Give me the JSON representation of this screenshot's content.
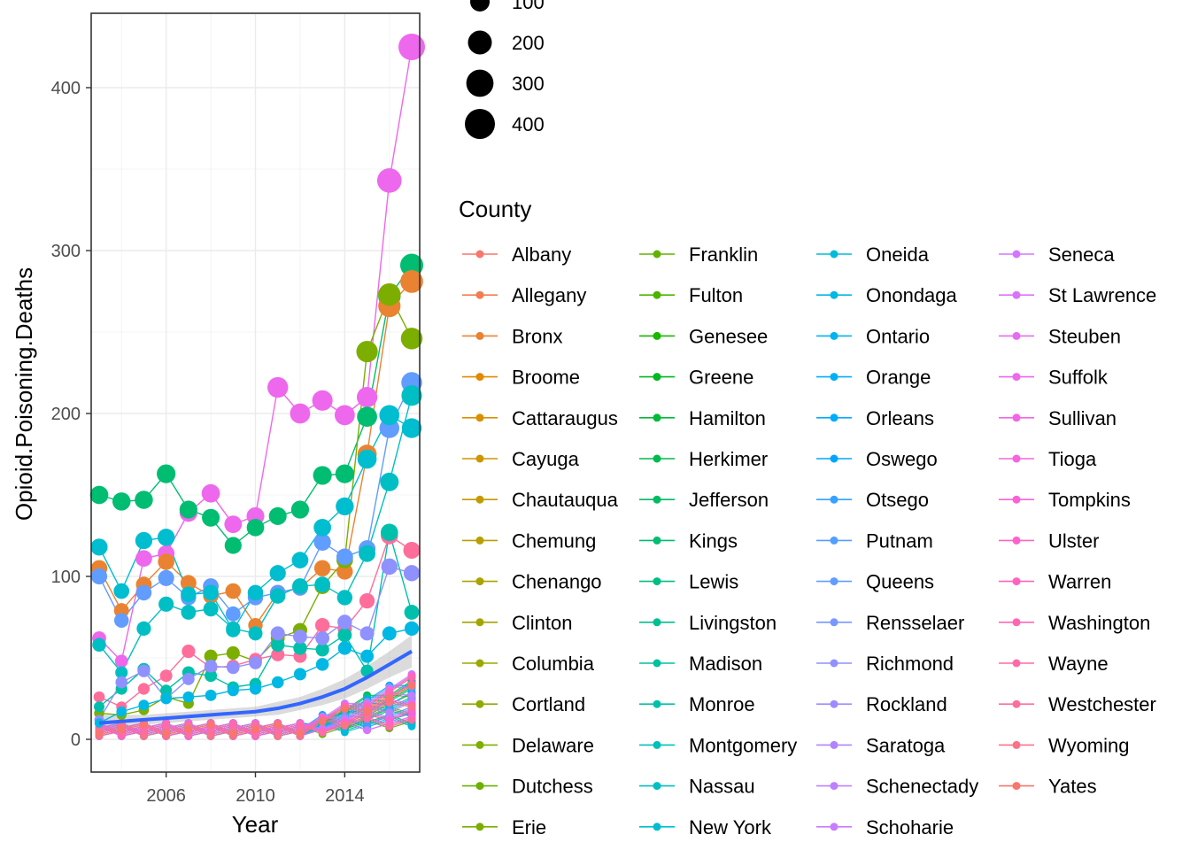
{
  "chart_data": {
    "type": "scatter",
    "xlabel": "Year",
    "ylabel": "Opioid.Poisoning.Deaths",
    "xlim": [
      2003,
      2017
    ],
    "ylim": [
      0,
      430
    ],
    "x_ticks": [
      2006,
      2010,
      2014
    ],
    "x_tick_labels": [
      "2006",
      "2010",
      "2014"
    ],
    "y_ticks": [
      0,
      100,
      200,
      300,
      400
    ],
    "y_tick_labels": [
      "0",
      "100",
      "200",
      "300",
      "400"
    ],
    "grid": true,
    "legend_placement": "right",
    "size_legend": {
      "values": [
        100,
        200,
        300,
        400
      ],
      "labels": [
        "100",
        "200",
        "300",
        "400"
      ]
    },
    "color_legend": {
      "title": "County",
      "entries": [
        {
          "name": "Albany",
          "color": "#F8766D"
        },
        {
          "name": "Allegany",
          "color": "#F27D52"
        },
        {
          "name": "Bronx",
          "color": "#EA8331"
        },
        {
          "name": "Broome",
          "color": "#E18A00"
        },
        {
          "name": "Cattaraugus",
          "color": "#D89000"
        },
        {
          "name": "Cayuga",
          "color": "#CD9600"
        },
        {
          "name": "Chautauqua",
          "color": "#C49A00"
        },
        {
          "name": "Chemung",
          "color": "#B79F00"
        },
        {
          "name": "Chenango",
          "color": "#ABA300"
        },
        {
          "name": "Clinton",
          "color": "#A3A500"
        },
        {
          "name": "Columbia",
          "color": "#9AA800"
        },
        {
          "name": "Cortland",
          "color": "#8EAB00"
        },
        {
          "name": "Delaware",
          "color": "#7EAE00"
        },
        {
          "name": "Dutchess",
          "color": "#6BB100"
        },
        {
          "name": "Erie",
          "color": "#7CAE00"
        },
        {
          "name": "Franklin",
          "color": "#64B200"
        },
        {
          "name": "Fulton",
          "color": "#4CB400"
        },
        {
          "name": "Genesee",
          "color": "#1AB700"
        },
        {
          "name": "Greene",
          "color": "#00B81F"
        },
        {
          "name": "Hamilton",
          "color": "#00BA38"
        },
        {
          "name": "Herkimer",
          "color": "#00BB4E"
        },
        {
          "name": "Jefferson",
          "color": "#00BC61"
        },
        {
          "name": "Kings",
          "color": "#00BD72"
        },
        {
          "name": "Lewis",
          "color": "#00BE82"
        },
        {
          "name": "Livingston",
          "color": "#00BF91"
        },
        {
          "name": "Madison",
          "color": "#00C09F"
        },
        {
          "name": "Monroe",
          "color": "#00C0AC"
        },
        {
          "name": "Montgomery",
          "color": "#00C0B8"
        },
        {
          "name": "Nassau",
          "color": "#00BFC4"
        },
        {
          "name": "New York",
          "color": "#00BDCF"
        },
        {
          "name": "Oneida",
          "color": "#00BBDA"
        },
        {
          "name": "Onondaga",
          "color": "#00B8E3"
        },
        {
          "name": "Ontario",
          "color": "#00B4EC"
        },
        {
          "name": "Orange",
          "color": "#00B0F6"
        },
        {
          "name": "Orleans",
          "color": "#00ABFD"
        },
        {
          "name": "Oswego",
          "color": "#00A5FF"
        },
        {
          "name": "Otsego",
          "color": "#35A2FF"
        },
        {
          "name": "Putnam",
          "color": "#539EFF"
        },
        {
          "name": "Queens",
          "color": "#619CFF"
        },
        {
          "name": "Rensselaer",
          "color": "#7997FF"
        },
        {
          "name": "Richmond",
          "color": "#8F91FF"
        },
        {
          "name": "Rockland",
          "color": "#A18AFF"
        },
        {
          "name": "Saratoga",
          "color": "#B184FF"
        },
        {
          "name": "Schenectady",
          "color": "#BF80FF"
        },
        {
          "name": "Schoharie",
          "color": "#C77CFF"
        },
        {
          "name": "Seneca",
          "color": "#D376FF"
        },
        {
          "name": "St Lawrence",
          "color": "#DC71FA"
        },
        {
          "name": "Steuben",
          "color": "#E56DF3"
        },
        {
          "name": "Suffolk",
          "color": "#ED68ED"
        },
        {
          "name": "Sullivan",
          "color": "#F365E6"
        },
        {
          "name": "Tioga",
          "color": "#F863DF"
        },
        {
          "name": "Tompkins",
          "color": "#FC61D5"
        },
        {
          "name": "Ulster",
          "color": "#FF62CB"
        },
        {
          "name": "Warren",
          "color": "#FF64C0"
        },
        {
          "name": "Washington",
          "color": "#FF67B5"
        },
        {
          "name": "Wayne",
          "color": "#FF6BA9"
        },
        {
          "name": "Westchester",
          "color": "#FE6E9B"
        },
        {
          "name": "Wyoming",
          "color": "#FB728C"
        },
        {
          "name": "Yates",
          "color": "#F8766D"
        }
      ]
    },
    "years": [
      2003,
      2004,
      2005,
      2006,
      2007,
      2008,
      2009,
      2010,
      2011,
      2012,
      2013,
      2014,
      2015,
      2016,
      2017
    ],
    "highlighted_series": [
      {
        "county": "Suffolk",
        "color": "#ED68ED",
        "values": [
          62,
          48,
          111,
          114,
          139,
          151,
          132,
          137,
          216,
          200,
          208,
          199,
          210,
          343,
          425
        ]
      },
      {
        "county": "Kings",
        "color": "#00BD72",
        "values": [
          150,
          146,
          147,
          163,
          141,
          136,
          119,
          130,
          137,
          141,
          162,
          163,
          198,
          272,
          291
        ]
      },
      {
        "county": "Bronx",
        "color": "#EA8331",
        "values": [
          105,
          79,
          95,
          109,
          96,
          88,
          91,
          70,
          90,
          93,
          105,
          103,
          175,
          266,
          281
        ]
      },
      {
        "county": "Erie",
        "color": "#7CAE00",
        "values": [
          16,
          15,
          18,
          26,
          22,
          51,
          53,
          48,
          62,
          67,
          94,
          110,
          238,
          273,
          246
        ]
      },
      {
        "county": "Queens",
        "color": "#619CFF",
        "values": [
          100,
          73,
          90,
          99,
          87,
          94,
          77,
          87,
          90,
          93,
          121,
          112,
          117,
          191,
          219
        ]
      },
      {
        "county": "New York",
        "color": "#00BDCF",
        "values": [
          118,
          91,
          122,
          124,
          89,
          90,
          67,
          90,
          102,
          110,
          130,
          143,
          172,
          199,
          191
        ]
      },
      {
        "county": "Nassau",
        "color": "#00BFC4",
        "values": [
          58,
          41,
          68,
          83,
          78,
          80,
          68,
          65,
          88,
          94,
          95,
          87,
          114,
          158,
          211
        ]
      },
      {
        "county": "Westchester",
        "color": "#FE6E9B",
        "values": [
          26,
          20,
          31,
          39,
          54,
          44,
          45,
          49,
          52,
          51,
          70,
          68,
          85,
          125,
          116
        ]
      },
      {
        "county": "Monroe",
        "color": "#00C0AC",
        "values": [
          20,
          31,
          43,
          30,
          41,
          39,
          32,
          34,
          58,
          56,
          55,
          64,
          42,
          127,
          78
        ]
      },
      {
        "county": "Richmond",
        "color": "#8F91FF",
        "values": [
          12,
          35,
          42,
          25,
          37,
          45,
          44,
          47,
          65,
          63,
          62,
          72,
          65,
          106,
          102
        ]
      },
      {
        "county": "Onondaga",
        "color": "#00B8E3",
        "values": [
          10,
          17,
          21,
          25,
          26,
          27,
          30,
          31,
          35,
          40,
          46,
          56,
          51,
          65,
          68
        ]
      }
    ],
    "trend_line": {
      "color": "#3366FF",
      "values": [
        10,
        11,
        12,
        13,
        14,
        15,
        16,
        17,
        19,
        22,
        26,
        31,
        38,
        46,
        54
      ],
      "band_low": [
        5,
        7,
        9,
        10,
        11,
        12,
        13,
        14,
        15,
        18,
        21,
        25,
        31,
        38,
        44
      ],
      "band_high": [
        15,
        15,
        15,
        16,
        17,
        18,
        19,
        20,
        23,
        26,
        31,
        37,
        45,
        54,
        64
      ]
    }
  }
}
